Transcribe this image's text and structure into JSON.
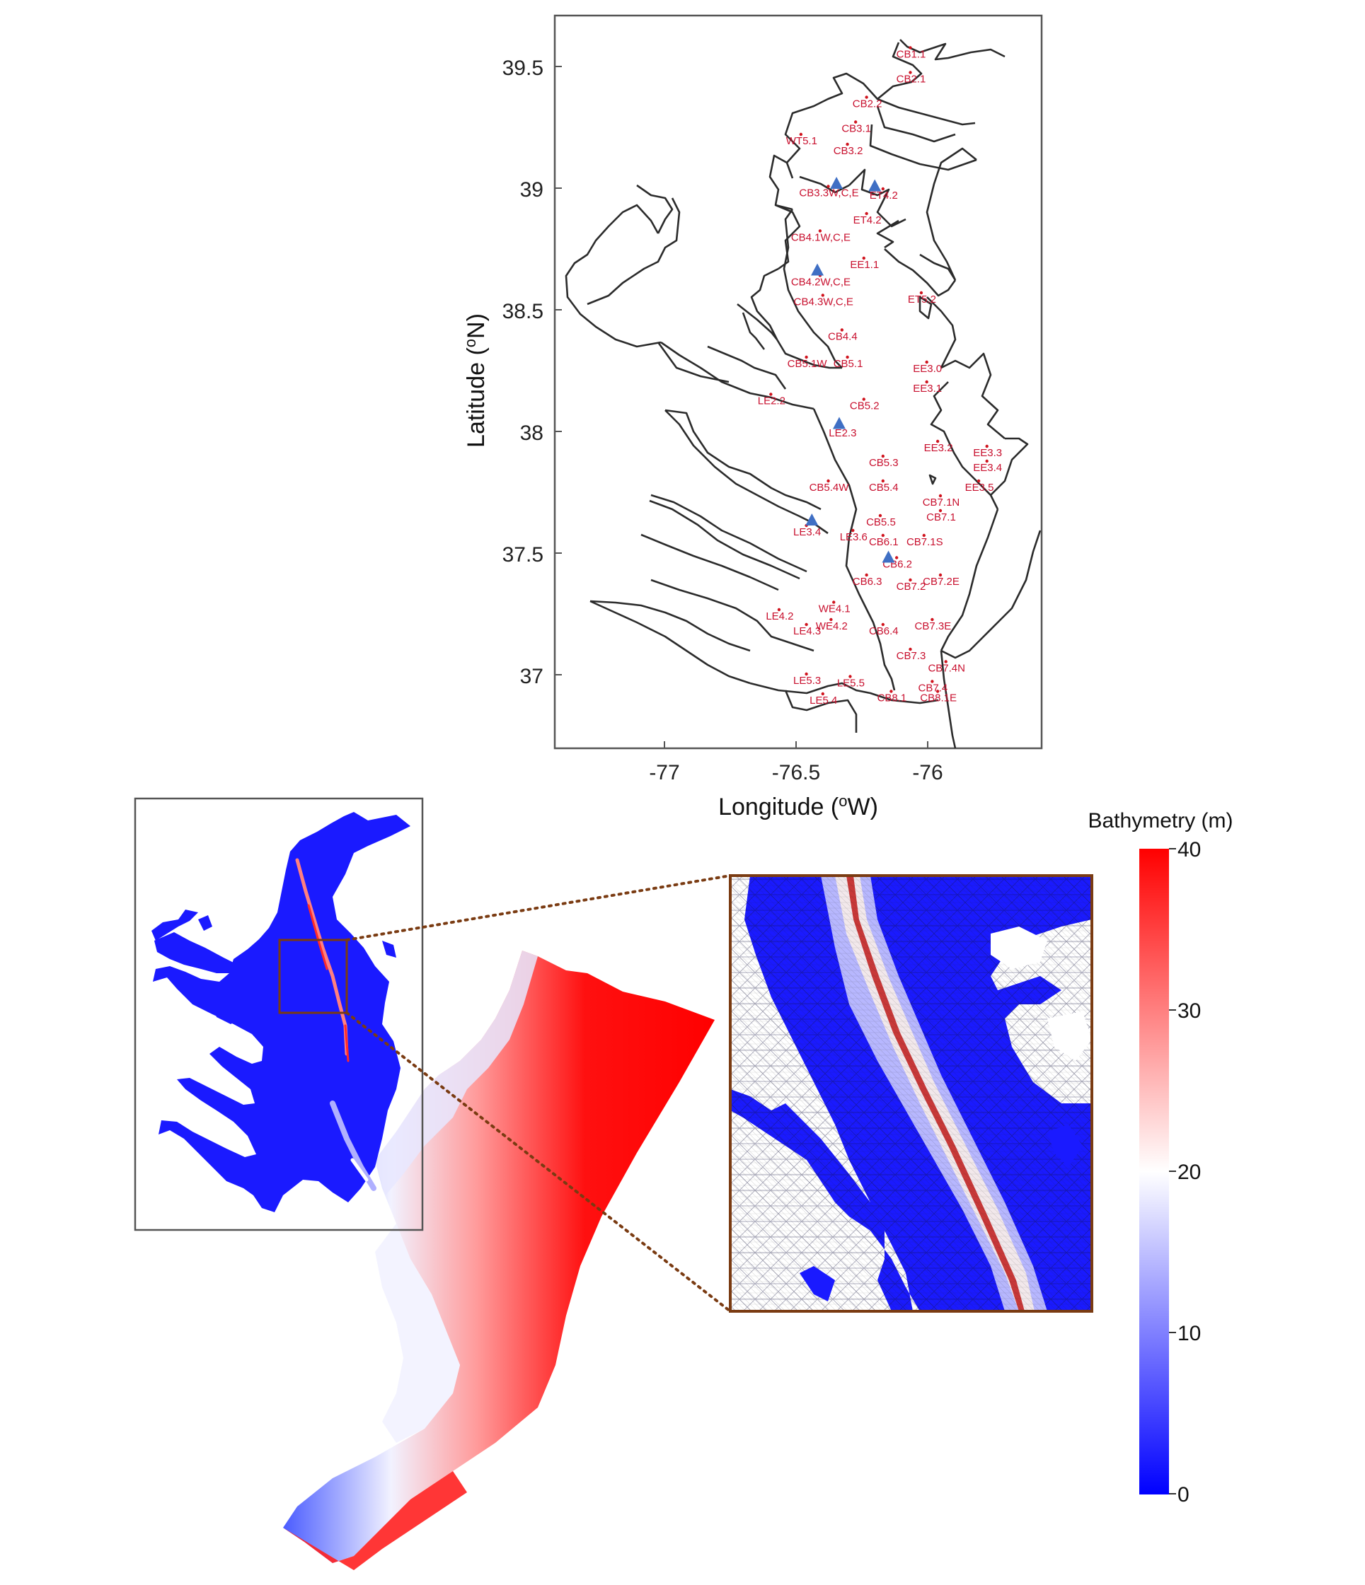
{
  "colors": {
    "station": "#d0141e",
    "triangle": "#3f6fc4",
    "coast": "#2b2b2b",
    "inset_frame": "#7a3b12",
    "bathy_low": "#0000ff",
    "bathy_mid": "#ffffff",
    "bathy_high": "#ff0000"
  },
  "map": {
    "xlabel": "Longitude (",
    "xlabel_sup": "o",
    "xlabel_end": "W)",
    "ylabel": "Latitude (",
    "ylabel_sup": "o",
    "ylabel_end": "N)",
    "xlim": [
      -77.4,
      -75.62
    ],
    "ylim": [
      36.72,
      39.68
    ],
    "xticks": [
      "-77",
      "-76.5",
      "-76"
    ],
    "yticks": [
      "37",
      "37.5",
      "38",
      "38.5",
      "39",
      "39.5"
    ],
    "stations": [
      {
        "label": "CB1.1",
        "lon": -76.1,
        "lat": 39.55
      },
      {
        "label": "CB2.1",
        "lon": -76.1,
        "lat": 39.45
      },
      {
        "label": "CB2.2",
        "lon": -76.26,
        "lat": 39.35
      },
      {
        "label": "CB3.1",
        "lon": -76.3,
        "lat": 39.25
      },
      {
        "label": "WT5.1",
        "lon": -76.5,
        "lat": 39.2
      },
      {
        "label": "CB3.2",
        "lon": -76.33,
        "lat": 39.16
      },
      {
        "label": "CB3.3W,C,E",
        "lon": -76.4,
        "lat": 38.99
      },
      {
        "label": "ET4.2",
        "lon": -76.2,
        "lat": 38.98
      },
      {
        "label": "ET4.2",
        "lon": -76.26,
        "lat": 38.88
      },
      {
        "label": "CB4.1W,C,E",
        "lon": -76.43,
        "lat": 38.81
      },
      {
        "label": "EE1.1",
        "lon": -76.27,
        "lat": 38.7
      },
      {
        "label": "CB4.2W,C,E",
        "lon": -76.43,
        "lat": 38.63
      },
      {
        "label": "CB4.3W,C,E",
        "lon": -76.42,
        "lat": 38.55
      },
      {
        "label": "ET5.2",
        "lon": -76.06,
        "lat": 38.56
      },
      {
        "label": "CB4.4",
        "lon": -76.35,
        "lat": 38.41
      },
      {
        "label": "CB5.1W",
        "lon": -76.48,
        "lat": 38.3
      },
      {
        "label": "CB5.1",
        "lon": -76.33,
        "lat": 38.3
      },
      {
        "label": "EE3.0",
        "lon": -76.04,
        "lat": 38.28
      },
      {
        "label": "EE3.1",
        "lon": -76.04,
        "lat": 38.2
      },
      {
        "label": "LE2.2",
        "lon": -76.61,
        "lat": 38.15
      },
      {
        "label": "CB5.2",
        "lon": -76.27,
        "lat": 38.13
      },
      {
        "label": "LE2.3",
        "lon": -76.35,
        "lat": 38.02
      },
      {
        "label": "EE3.2",
        "lon": -76.0,
        "lat": 37.96
      },
      {
        "label": "EE3.3",
        "lon": -75.82,
        "lat": 37.94
      },
      {
        "label": "EE3.4",
        "lon": -75.82,
        "lat": 37.88
      },
      {
        "label": "CB5.3",
        "lon": -76.2,
        "lat": 37.9
      },
      {
        "label": "CB5.4W",
        "lon": -76.4,
        "lat": 37.8
      },
      {
        "label": "CB5.4",
        "lon": -76.2,
        "lat": 37.8
      },
      {
        "label": "EE3.5",
        "lon": -75.85,
        "lat": 37.8
      },
      {
        "label": "CB7.1N",
        "lon": -75.99,
        "lat": 37.74
      },
      {
        "label": "CB7.1",
        "lon": -75.99,
        "lat": 37.68
      },
      {
        "label": "CB5.5",
        "lon": -76.21,
        "lat": 37.66
      },
      {
        "label": "LE3.4",
        "lon": -76.48,
        "lat": 37.62
      },
      {
        "label": "LE3.6",
        "lon": -76.31,
        "lat": 37.6
      },
      {
        "label": "CB6.1",
        "lon": -76.2,
        "lat": 37.58
      },
      {
        "label": "CB7.1S",
        "lon": -76.05,
        "lat": 37.58
      },
      {
        "label": "CB6.2",
        "lon": -76.15,
        "lat": 37.49
      },
      {
        "label": "CB6.3",
        "lon": -76.26,
        "lat": 37.42
      },
      {
        "label": "CB7.2",
        "lon": -76.1,
        "lat": 37.4
      },
      {
        "label": "CB7.2E",
        "lon": -75.99,
        "lat": 37.42
      },
      {
        "label": "WE4.1",
        "lon": -76.38,
        "lat": 37.31
      },
      {
        "label": "LE4.2",
        "lon": -76.58,
        "lat": 37.28
      },
      {
        "label": "LE4.3",
        "lon": -76.48,
        "lat": 37.22
      },
      {
        "label": "WE4.2",
        "lon": -76.39,
        "lat": 37.24
      },
      {
        "label": "CB6.4",
        "lon": -76.2,
        "lat": 37.22
      },
      {
        "label": "CB7.3E",
        "lon": -76.02,
        "lat": 37.24
      },
      {
        "label": "CB7.3",
        "lon": -76.1,
        "lat": 37.12
      },
      {
        "label": "CB7.4N",
        "lon": -75.97,
        "lat": 37.07
      },
      {
        "label": "LE5.3",
        "lon": -76.48,
        "lat": 37.02
      },
      {
        "label": "LE5.5",
        "lon": -76.32,
        "lat": 37.01
      },
      {
        "label": "CB7.4",
        "lon": -76.02,
        "lat": 36.99
      },
      {
        "label": "CB8.1",
        "lon": -76.17,
        "lat": 36.95
      },
      {
        "label": "CB8.1E",
        "lon": -76.0,
        "lat": 36.95
      },
      {
        "label": "LE5.4",
        "lon": -76.42,
        "lat": 36.94
      }
    ],
    "triangles": [
      {
        "lon": -76.37,
        "lat": 39.0
      },
      {
        "lon": -76.23,
        "lat": 38.99
      },
      {
        "lon": -76.44,
        "lat": 38.65
      },
      {
        "lon": -76.36,
        "lat": 38.03
      },
      {
        "lon": -76.46,
        "lat": 37.64
      },
      {
        "lon": -76.18,
        "lat": 37.49
      }
    ]
  },
  "colorbar": {
    "title": "Bathymetry (m)",
    "ticks": [
      "40",
      "30",
      "20",
      "10",
      "0"
    ],
    "range": [
      0,
      40
    ]
  }
}
